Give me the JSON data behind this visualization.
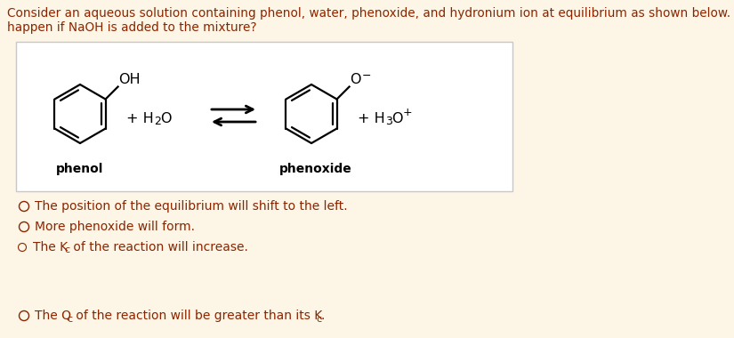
{
  "bg_color": "#fdf5e6",
  "box_bg": "#ffffff",
  "box_edge": "#c8c8c8",
  "text_color": "#8b2500",
  "title_text1": "Consider an aqueous solution containing phenol, water, phenoxide, and hydronium ion at equilibrium as shown below. What will",
  "title_text2": "happen if NaOH is added to the mixture?",
  "label_phenol": "phenol",
  "label_phenoxide": "phenoxide",
  "option1": "The position of the equilibrium will shift to the left.",
  "option2": "More phenoxide will form.",
  "option3_pre": "The K",
  "option3_sub": "c",
  "option3_post": " of the reaction will increase.",
  "option4_pre": "The Q",
  "option4_sub": "c",
  "option4_mid": " of the reaction will be greater than its K",
  "option4_sub2": "c",
  "option4_post": ".",
  "font_size_title": 9.8,
  "font_size_body": 10.0,
  "font_size_label": 10.0,
  "font_size_chem": 11.5,
  "font_size_sub": 8.0
}
